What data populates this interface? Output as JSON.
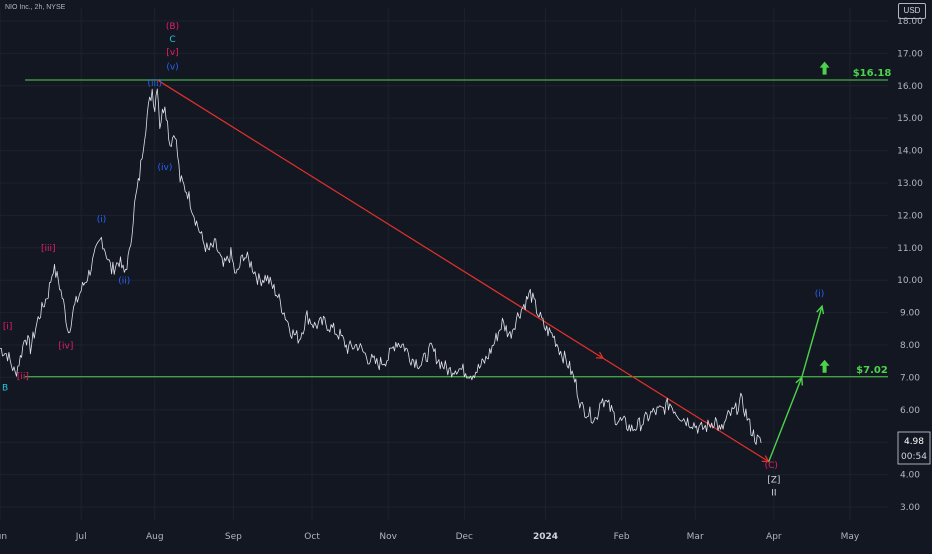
{
  "header": {
    "symbol": "NIO Inc., 2h, NYSE",
    "currency": "USD"
  },
  "colors": {
    "background": "#131722",
    "price": "#e0e3eb",
    "grid": "#1e222d",
    "axis_text": "#b2b5be",
    "green": "#4cd34c",
    "red": "#e5312d",
    "magenta": "#e91e63",
    "blue": "#2962ff",
    "cyan": "#26c6da"
  },
  "price_tag": {
    "value": "4.98",
    "countdown": "00:54"
  },
  "chart_data": {
    "type": "line",
    "title": "",
    "xlabel": "",
    "ylabel": "",
    "ylim": [
      2.6,
      18.4
    ],
    "xlim": [
      "2023-06-01",
      "2024-05-16"
    ],
    "grid": true,
    "y_ticks": [
      "3.00",
      "4.00",
      "5.00",
      "6.00",
      "7.00",
      "8.00",
      "9.00",
      "10.00",
      "11.00",
      "12.00",
      "13.00",
      "14.00",
      "15.00",
      "16.00",
      "17.00",
      "18.00"
    ],
    "x_ticks": [
      {
        "label": "Jun",
        "x": "2023-06-01"
      },
      {
        "label": "Jul",
        "x": "2023-07-03"
      },
      {
        "label": "Aug",
        "x": "2023-08-01"
      },
      {
        "label": "Sep",
        "x": "2023-09-01"
      },
      {
        "label": "Oct",
        "x": "2023-10-02"
      },
      {
        "label": "Nov",
        "x": "2023-11-01"
      },
      {
        "label": "Dec",
        "x": "2023-12-01"
      },
      {
        "label": "2024",
        "x": "2024-01-02"
      },
      {
        "label": "Feb",
        "x": "2024-02-01"
      },
      {
        "label": "Mar",
        "x": "2024-03-01"
      },
      {
        "label": "Apr",
        "x": "2024-04-01"
      },
      {
        "label": "May",
        "x": "2024-05-01"
      }
    ],
    "series": [
      {
        "points": [
          [
            "2023-06-01",
            7.9
          ],
          [
            "2023-06-04",
            7.7
          ],
          [
            "2023-06-07",
            7.1
          ],
          [
            "2023-06-09",
            7.6
          ],
          [
            "2023-06-11",
            8.3
          ],
          [
            "2023-06-13",
            7.9
          ],
          [
            "2023-06-16",
            8.8
          ],
          [
            "2023-06-20",
            9.6
          ],
          [
            "2023-06-22",
            10.4
          ],
          [
            "2023-06-24",
            10.0
          ],
          [
            "2023-06-26",
            9.3
          ],
          [
            "2023-06-28",
            8.4
          ],
          [
            "2023-06-30",
            9.1
          ],
          [
            "2023-07-03",
            9.7
          ],
          [
            "2023-07-06",
            10.2
          ],
          [
            "2023-07-09",
            10.9
          ],
          [
            "2023-07-11",
            11.3
          ],
          [
            "2023-07-13",
            10.8
          ],
          [
            "2023-07-15",
            10.3
          ],
          [
            "2023-07-18",
            10.6
          ],
          [
            "2023-07-20",
            10.2
          ],
          [
            "2023-07-22",
            10.8
          ],
          [
            "2023-07-24",
            12.3
          ],
          [
            "2023-07-26",
            13.2
          ],
          [
            "2023-07-27",
            13.9
          ],
          [
            "2023-07-29",
            15.1
          ],
          [
            "2023-07-31",
            15.9
          ],
          [
            "2023-08-01",
            15.3
          ],
          [
            "2023-08-02",
            16.1
          ],
          [
            "2023-08-03",
            14.8
          ],
          [
            "2023-08-05",
            15.5
          ],
          [
            "2023-08-07",
            14.2
          ],
          [
            "2023-08-09",
            14.6
          ],
          [
            "2023-08-11",
            13.1
          ],
          [
            "2023-08-14",
            12.7
          ],
          [
            "2023-08-17",
            11.9
          ],
          [
            "2023-08-20",
            11.2
          ],
          [
            "2023-08-22",
            10.9
          ],
          [
            "2023-08-25",
            11.1
          ],
          [
            "2023-08-28",
            10.4
          ],
          [
            "2023-08-31",
            10.8
          ],
          [
            "2023-09-02",
            10.1
          ],
          [
            "2023-09-05",
            10.8
          ],
          [
            "2023-09-08",
            10.5
          ],
          [
            "2023-09-11",
            10.0
          ],
          [
            "2023-09-14",
            10.1
          ],
          [
            "2023-09-18",
            9.6
          ],
          [
            "2023-09-21",
            9.0
          ],
          [
            "2023-09-24",
            8.4
          ],
          [
            "2023-09-27",
            8.2
          ],
          [
            "2023-09-30",
            8.9
          ],
          [
            "2023-10-03",
            8.6
          ],
          [
            "2023-10-07",
            8.7
          ],
          [
            "2023-10-10",
            8.5
          ],
          [
            "2023-10-13",
            8.3
          ],
          [
            "2023-10-16",
            7.9
          ],
          [
            "2023-10-20",
            8.0
          ],
          [
            "2023-10-24",
            7.6
          ],
          [
            "2023-10-28",
            7.4
          ],
          [
            "2023-11-01",
            7.6
          ],
          [
            "2023-11-04",
            8.1
          ],
          [
            "2023-11-07",
            8.0
          ],
          [
            "2023-11-10",
            7.6
          ],
          [
            "2023-11-14",
            7.4
          ],
          [
            "2023-11-18",
            7.9
          ],
          [
            "2023-11-21",
            7.5
          ],
          [
            "2023-11-25",
            7.2
          ],
          [
            "2023-11-28",
            7.3
          ],
          [
            "2023-12-01",
            7.2
          ],
          [
            "2023-12-04",
            7.1
          ],
          [
            "2023-12-07",
            7.3
          ],
          [
            "2023-12-10",
            7.6
          ],
          [
            "2023-12-13",
            8.1
          ],
          [
            "2023-12-16",
            8.7
          ],
          [
            "2023-12-19",
            8.3
          ],
          [
            "2023-12-22",
            8.9
          ],
          [
            "2023-12-25",
            9.3
          ],
          [
            "2023-12-27",
            9.6
          ],
          [
            "2023-12-30",
            9.0
          ],
          [
            "2024-01-02",
            8.5
          ],
          [
            "2024-01-05",
            8.3
          ],
          [
            "2024-01-08",
            7.8
          ],
          [
            "2024-01-11",
            7.4
          ],
          [
            "2024-01-14",
            6.8
          ],
          [
            "2024-01-16",
            6.1
          ],
          [
            "2024-01-19",
            5.9
          ],
          [
            "2024-01-22",
            5.7
          ],
          [
            "2024-01-24",
            6.4
          ],
          [
            "2024-01-27",
            6.1
          ],
          [
            "2024-01-30",
            5.7
          ],
          [
            "2024-02-02",
            5.6
          ],
          [
            "2024-02-05",
            5.4
          ],
          [
            "2024-02-09",
            5.6
          ],
          [
            "2024-02-13",
            5.9
          ],
          [
            "2024-02-17",
            6.0
          ],
          [
            "2024-02-20",
            6.2
          ],
          [
            "2024-02-23",
            5.9
          ],
          [
            "2024-02-26",
            5.7
          ],
          [
            "2024-02-29",
            5.6
          ],
          [
            "2024-03-03",
            5.4
          ],
          [
            "2024-03-06",
            5.5
          ],
          [
            "2024-03-09",
            5.7
          ],
          [
            "2024-03-11",
            5.3
          ],
          [
            "2024-03-14",
            5.8
          ],
          [
            "2024-03-17",
            6.0
          ],
          [
            "2024-03-19",
            6.3
          ],
          [
            "2024-03-21",
            5.9
          ],
          [
            "2024-03-23",
            5.4
          ],
          [
            "2024-03-25",
            5.1
          ],
          [
            "2024-03-27",
            4.98
          ]
        ]
      }
    ],
    "horizontal_levels": [
      {
        "value": 16.18,
        "label": "$16.18"
      },
      {
        "value": 7.02,
        "label": "$7.02"
      }
    ],
    "trend_lines": [
      {
        "from": [
          "2023-08-02",
          16.18
        ],
        "to": [
          "2024-03-30",
          4.4
        ],
        "color": "red"
      }
    ],
    "projection": [
      {
        "from": [
          "2024-03-30",
          4.4
        ],
        "to": [
          "2024-04-12",
          7.0
        ]
      },
      {
        "from": [
          "2024-04-12",
          7.0
        ],
        "to": [
          "2024-04-20",
          9.2
        ]
      }
    ],
    "up_arrows": [
      {
        "x": "2024-04-21",
        "y": 16.5
      },
      {
        "x": "2024-04-21",
        "y": 7.3
      }
    ],
    "wave_labels": [
      {
        "text": "(B)",
        "x": "2023-08-08",
        "y": 17.75,
        "color": "magenta"
      },
      {
        "text": "C",
        "x": "2023-08-08",
        "y": 17.35,
        "color": "cyan"
      },
      {
        "text": "[v]",
        "x": "2023-08-08",
        "y": 16.95,
        "color": "magenta"
      },
      {
        "text": "(v)",
        "x": "2023-08-08",
        "y": 16.5,
        "color": "blue"
      },
      {
        "text": "(iii)",
        "x": "2023-08-01",
        "y": 16.0,
        "color": "blue"
      },
      {
        "text": "(iv)",
        "x": "2023-08-05",
        "y": 13.4,
        "color": "blue"
      },
      {
        "text": "(i)",
        "x": "2023-07-11",
        "y": 11.8,
        "color": "blue"
      },
      {
        "text": "(ii)",
        "x": "2023-07-20",
        "y": 9.9,
        "color": "blue"
      },
      {
        "text": "[iii]",
        "x": "2023-06-20",
        "y": 10.9,
        "color": "magenta"
      },
      {
        "text": "[iv]",
        "x": "2023-06-27",
        "y": 7.9,
        "color": "magenta"
      },
      {
        "text": "[i]",
        "x": "2023-06-04",
        "y": 8.5,
        "color": "magenta"
      },
      {
        "text": "[ii]",
        "x": "2023-06-10",
        "y": 6.95,
        "color": "magenta"
      },
      {
        "text": "B",
        "x": "2023-06-03",
        "y": 6.6,
        "color": "cyan"
      },
      {
        "text": "(C)",
        "x": "2024-03-31",
        "y": 4.2,
        "color": "magenta"
      },
      {
        "text": "[Z]",
        "x": "2024-04-01",
        "y": 3.75,
        "color": "white"
      },
      {
        "text": "II",
        "x": "2024-04-01",
        "y": 3.35,
        "color": "white"
      },
      {
        "text": "(i)",
        "x": "2024-04-19",
        "y": 9.5,
        "color": "blue"
      }
    ]
  }
}
